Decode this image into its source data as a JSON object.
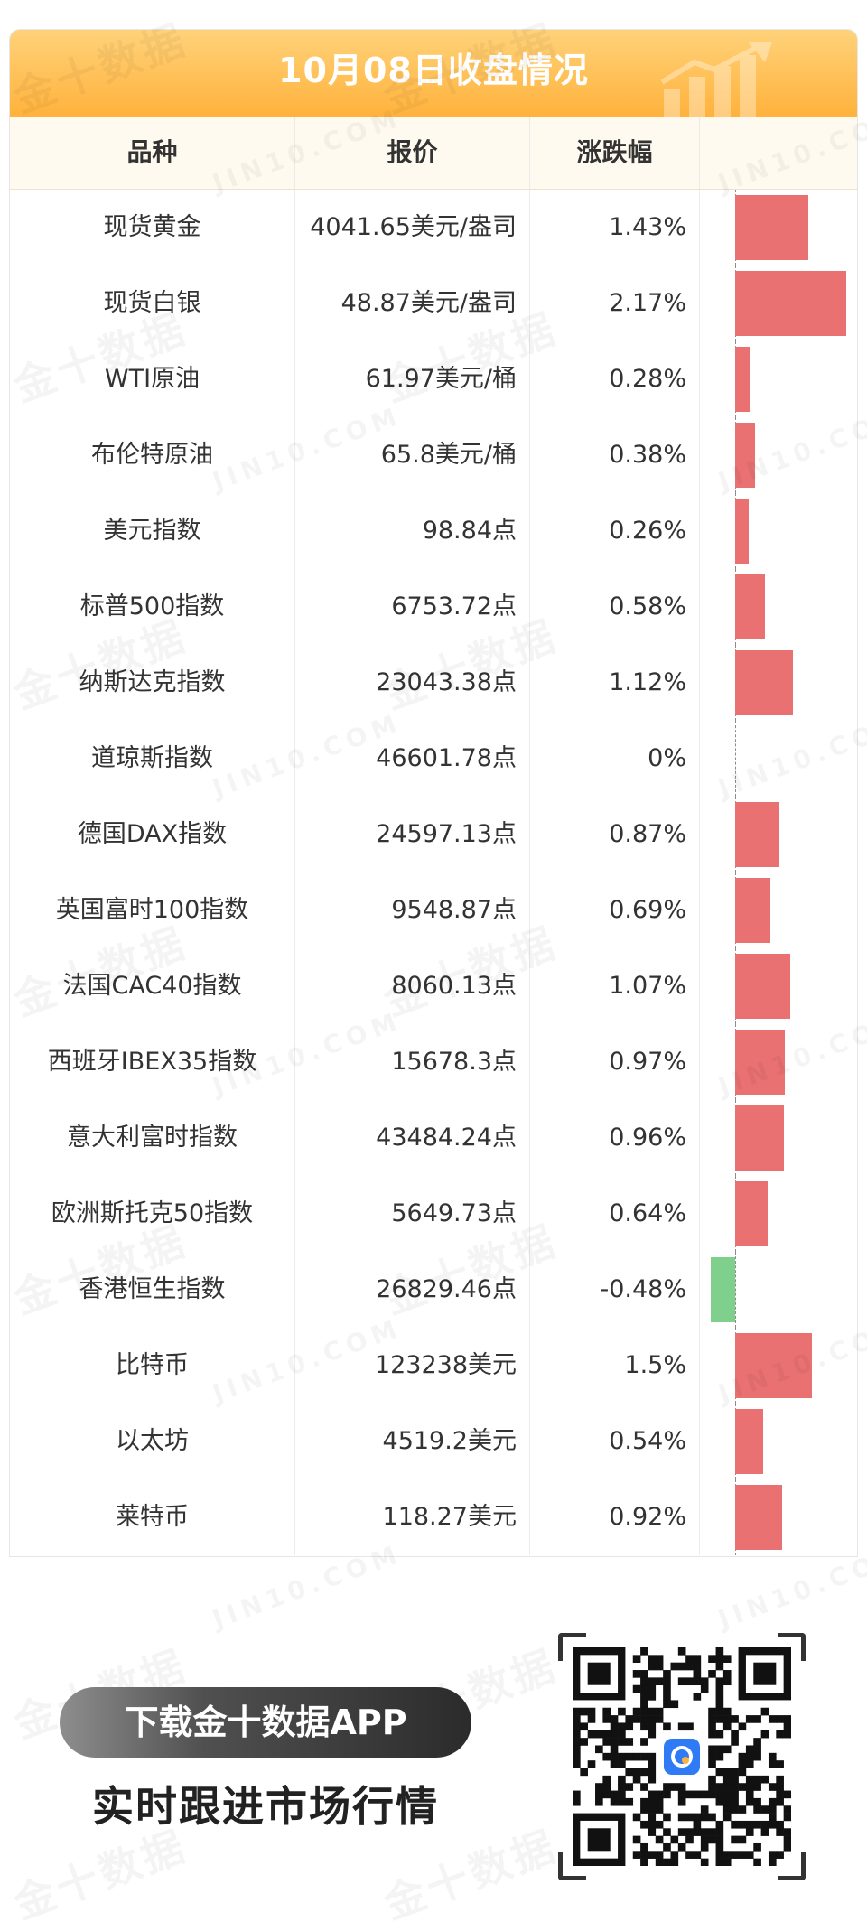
{
  "header": {
    "title": "10月08日收盘情况"
  },
  "columns": {
    "name": "品种",
    "price": "报价",
    "change": "涨跌幅"
  },
  "rows": [
    {
      "name": "现货黄金",
      "price": "4041.65美元/盎司",
      "change": "1.43%",
      "value": 1.43
    },
    {
      "name": "现货白银",
      "price": "48.87美元/盎司",
      "change": "2.17%",
      "value": 2.17
    },
    {
      "name": "WTI原油",
      "price": "61.97美元/桶",
      "change": "0.28%",
      "value": 0.28
    },
    {
      "name": "布伦特原油",
      "price": "65.8美元/桶",
      "change": "0.38%",
      "value": 0.38
    },
    {
      "name": "美元指数",
      "price": "98.84点",
      "change": "0.26%",
      "value": 0.26
    },
    {
      "name": "标普500指数",
      "price": "6753.72点",
      "change": "0.58%",
      "value": 0.58
    },
    {
      "name": "纳斯达克指数",
      "price": "23043.38点",
      "change": "1.12%",
      "value": 1.12
    },
    {
      "name": "道琼斯指数",
      "price": "46601.78点",
      "change": "0%",
      "value": 0
    },
    {
      "name": "德国DAX指数",
      "price": "24597.13点",
      "change": "0.87%",
      "value": 0.87
    },
    {
      "name": "英国富时100指数",
      "price": "9548.87点",
      "change": "0.69%",
      "value": 0.69
    },
    {
      "name": "法国CAC40指数",
      "price": "8060.13点",
      "change": "1.07%",
      "value": 1.07
    },
    {
      "name": "西班牙IBEX35指数",
      "price": "15678.3点",
      "change": "0.97%",
      "value": 0.97
    },
    {
      "name": "意大利富时指数",
      "price": "43484.24点",
      "change": "0.96%",
      "value": 0.96
    },
    {
      "name": "欧洲斯托克50指数",
      "price": "5649.73点",
      "change": "0.64%",
      "value": 0.64
    },
    {
      "name": "香港恒生指数",
      "price": "26829.46点",
      "change": "-0.48%",
      "value": -0.48
    },
    {
      "name": "比特币",
      "price": "123238美元",
      "change": "1.5%",
      "value": 1.5
    },
    {
      "name": "以太坊",
      "price": "4519.2美元",
      "change": "0.54%",
      "value": 0.54
    },
    {
      "name": "莱特币",
      "price": "118.27美元",
      "change": "0.92%",
      "value": 0.92
    }
  ],
  "colors": {
    "up": "#e97171",
    "down": "#7ed08c",
    "header_top": "#ffd27a",
    "header_bottom": "#ffb23c"
  },
  "chart_data": {
    "type": "bar",
    "orientation": "horizontal",
    "categories": [
      "现货黄金",
      "现货白银",
      "WTI原油",
      "布伦特原油",
      "美元指数",
      "标普500指数",
      "纳斯达克指数",
      "道琼斯指数",
      "德国DAX指数",
      "英国富时100指数",
      "法国CAC40指数",
      "西班牙IBEX35指数",
      "意大利富时指数",
      "欧洲斯托克50指数",
      "香港恒生指数",
      "比特币",
      "以太坊",
      "莱特币"
    ],
    "values": [
      1.43,
      2.17,
      0.28,
      0.38,
      0.26,
      0.58,
      1.12,
      0,
      0.87,
      0.69,
      1.07,
      0.97,
      0.96,
      0.64,
      -0.48,
      1.5,
      0.54,
      0.92
    ],
    "xlim": [
      -0.48,
      2.17
    ]
  },
  "watermark": {
    "cn": "金十数据",
    "en": "JIN10.COM"
  },
  "footer": {
    "download_label": "下载金十数据APP",
    "slogan": "实时跟进市场行情"
  }
}
